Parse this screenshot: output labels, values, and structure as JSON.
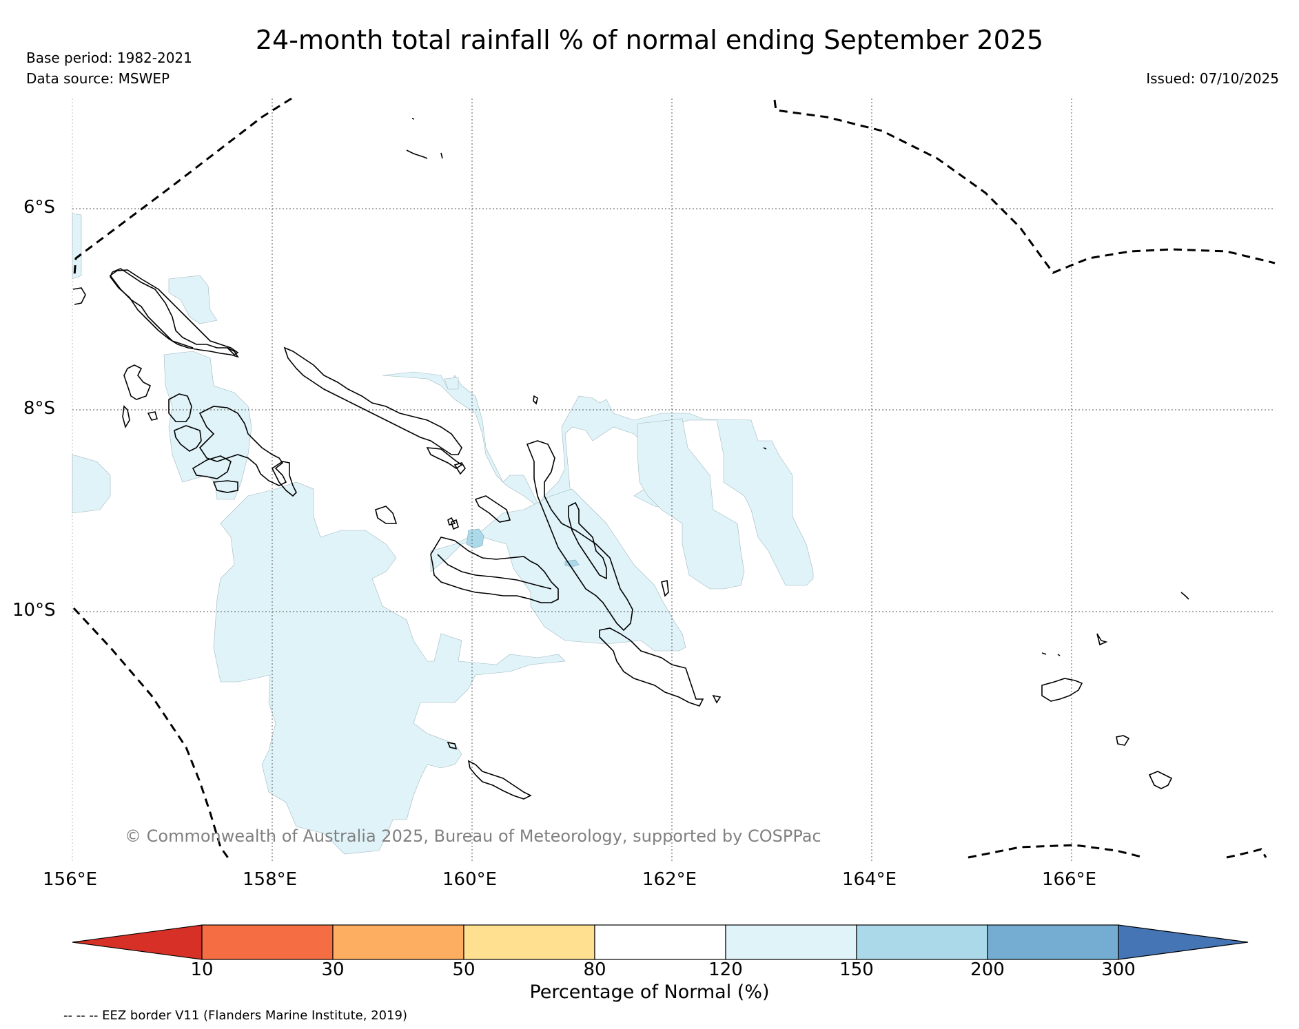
{
  "title": "24-month total rainfall % of normal ending September 2025",
  "base_period": "Base period: 1982-2021",
  "data_source": "Data source: MSWEP",
  "issued": "Issued: 07/10/2025",
  "map": {
    "latitude_labels": [
      "6°S",
      "8°S",
      "10°S"
    ],
    "longitude_labels": [
      "156°E",
      "158°E",
      "160°E",
      "162°E",
      "164°E",
      "166°E"
    ],
    "copyright": "© Commonwealth of Australia 2025, Bureau of Meteorology, supported by COSPPac",
    "colors": {
      "land_outline": "#000000",
      "above_normal_120_150": "#e0f3f8",
      "above_normal_150_200": "#abd9e9",
      "eez_border": "#000000",
      "gridline": "#555555"
    }
  },
  "colorbar": {
    "label": "Percentage of Normal (%)",
    "ticks": [
      "10",
      "30",
      "50",
      "80",
      "120",
      "150",
      "200",
      "300"
    ],
    "colors": [
      "#d73027",
      "#f46d43",
      "#fdae61",
      "#fee090",
      "#ffffff",
      "#e0f3f8",
      "#abd9e9",
      "#74add1",
      "#4575b4"
    ]
  },
  "legend_note": "-- -- -- EEZ border V11 (Flanders Marine Institute, 2019)"
}
